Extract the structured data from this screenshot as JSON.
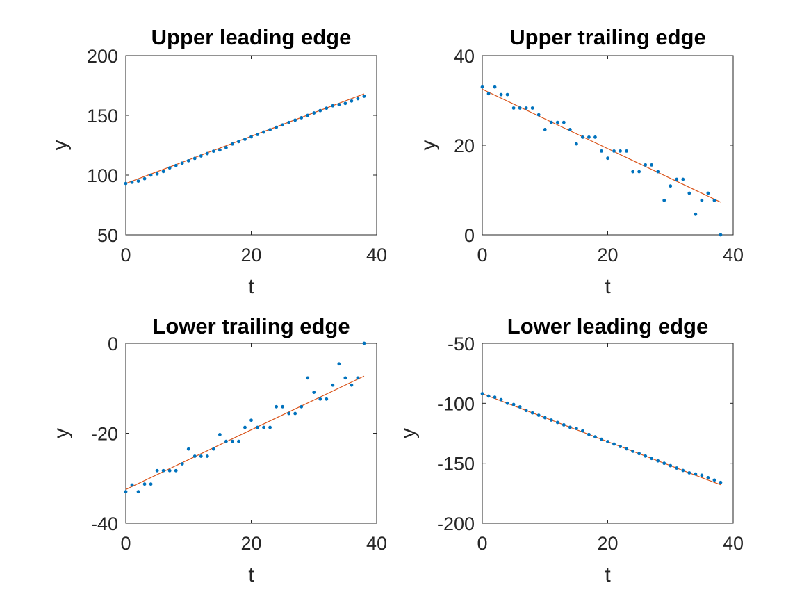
{
  "colors": {
    "points": "#0072BD",
    "fit": "#D95319",
    "axis": "#262626"
  },
  "chart_data": [
    {
      "type": "scatter",
      "title": "Upper leading edge",
      "xlabel": "t",
      "ylabel": "y",
      "xlim": [
        0,
        40
      ],
      "ylim": [
        50,
        200
      ],
      "xticks": [
        0,
        20,
        40
      ],
      "yticks": [
        50,
        100,
        150,
        200
      ],
      "xtick_labels": [
        "0",
        "20",
        "40"
      ],
      "ytick_labels": [
        "50",
        "100",
        "150",
        "200"
      ],
      "grid": false,
      "x": [
        0,
        1,
        2,
        3,
        4,
        5,
        6,
        7,
        8,
        9,
        10,
        11,
        12,
        13,
        14,
        15,
        16,
        17,
        18,
        19,
        20,
        21,
        22,
        23,
        24,
        25,
        26,
        27,
        28,
        29,
        30,
        31,
        32,
        33,
        34,
        35,
        36,
        37,
        38
      ],
      "y": [
        93,
        94,
        95,
        97,
        100,
        101,
        103,
        106,
        108,
        110,
        112,
        114,
        116,
        118,
        120,
        121,
        123,
        126,
        128,
        130,
        132,
        134,
        136,
        138,
        140,
        142,
        144,
        146,
        148,
        150,
        152,
        154,
        156,
        158,
        159,
        160,
        162,
        164,
        166
      ],
      "fit": {
        "x": [
          0,
          38
        ],
        "y": [
          93,
          168
        ]
      }
    },
    {
      "type": "scatter",
      "title": "Upper trailing edge",
      "xlabel": "t",
      "ylabel": "y",
      "xlim": [
        0,
        40
      ],
      "ylim": [
        0,
        40
      ],
      "xticks": [
        0,
        20,
        40
      ],
      "yticks": [
        0,
        20,
        40
      ],
      "xtick_labels": [
        "0",
        "20",
        "40"
      ],
      "ytick_labels": [
        "0",
        "20",
        "40"
      ],
      "grid": false,
      "x": [
        0,
        1,
        2,
        3,
        4,
        5,
        6,
        7,
        8,
        9,
        10,
        11,
        12,
        13,
        14,
        15,
        16,
        17,
        18,
        19,
        20,
        21,
        22,
        23,
        24,
        25,
        26,
        27,
        28,
        29,
        30,
        31,
        32,
        33,
        34,
        35,
        36,
        37,
        38
      ],
      "y": [
        33,
        31.5,
        33,
        31.3,
        31.3,
        28.3,
        28.3,
        28.3,
        28.3,
        26.8,
        23.5,
        25.1,
        25.1,
        25.1,
        23.5,
        20.3,
        21.8,
        21.8,
        21.8,
        18.7,
        17.1,
        18.7,
        18.7,
        18.7,
        14.1,
        14.1,
        15.6,
        15.6,
        14.1,
        7.7,
        10.9,
        12.4,
        12.4,
        9.3,
        4.6,
        7.7,
        9.3,
        7.7,
        0
      ],
      "fit": {
        "x": [
          0,
          38
        ],
        "y": [
          32.5,
          7.3
        ]
      }
    },
    {
      "type": "scatter",
      "title": "Lower trailing edge",
      "xlabel": "t",
      "ylabel": "y",
      "xlim": [
        0,
        40
      ],
      "ylim": [
        -40,
        0
      ],
      "xticks": [
        0,
        20,
        40
      ],
      "yticks": [
        -40,
        -20,
        0
      ],
      "xtick_labels": [
        "0",
        "20",
        "40"
      ],
      "ytick_labels": [
        "-40",
        "-20",
        "0"
      ],
      "grid": false,
      "x": [
        0,
        1,
        2,
        3,
        4,
        5,
        6,
        7,
        8,
        9,
        10,
        11,
        12,
        13,
        14,
        15,
        16,
        17,
        18,
        19,
        20,
        21,
        22,
        23,
        24,
        25,
        26,
        27,
        28,
        29,
        30,
        31,
        32,
        33,
        34,
        35,
        36,
        37,
        38
      ],
      "y": [
        -33,
        -31.5,
        -33,
        -31.3,
        -31.3,
        -28.3,
        -28.3,
        -28.3,
        -28.3,
        -26.8,
        -23.5,
        -25.1,
        -25.1,
        -25.1,
        -23.5,
        -20.3,
        -21.8,
        -21.8,
        -21.8,
        -18.7,
        -17.1,
        -18.7,
        -18.7,
        -18.7,
        -14.1,
        -14.1,
        -15.6,
        -15.6,
        -14.1,
        -7.7,
        -10.9,
        -12.4,
        -12.4,
        -9.3,
        -4.6,
        -7.7,
        -9.3,
        -7.7,
        0
      ],
      "fit": {
        "x": [
          0,
          38
        ],
        "y": [
          -32.5,
          -7.3
        ]
      }
    },
    {
      "type": "scatter",
      "title": "Lower leading edge",
      "xlabel": "t",
      "ylabel": "y",
      "xlim": [
        0,
        40
      ],
      "ylim": [
        -200,
        -50
      ],
      "xticks": [
        0,
        20,
        40
      ],
      "yticks": [
        -200,
        -150,
        -100,
        -50
      ],
      "xtick_labels": [
        "0",
        "20",
        "40"
      ],
      "ytick_labels": [
        "-200",
        "-150",
        "-100",
        "-50"
      ],
      "grid": false,
      "x": [
        0,
        1,
        2,
        3,
        4,
        5,
        6,
        7,
        8,
        9,
        10,
        11,
        12,
        13,
        14,
        15,
        16,
        17,
        18,
        19,
        20,
        21,
        22,
        23,
        24,
        25,
        26,
        27,
        28,
        29,
        30,
        31,
        32,
        33,
        34,
        35,
        36,
        37,
        38
      ],
      "y": [
        -92,
        -94,
        -95,
        -97,
        -100,
        -101,
        -103,
        -106,
        -108,
        -110,
        -112,
        -114,
        -116,
        -118,
        -120,
        -121,
        -123,
        -126,
        -128,
        -130,
        -132,
        -134,
        -136,
        -138,
        -140,
        -142,
        -144,
        -146,
        -148,
        -150,
        -152,
        -154,
        -156,
        -158,
        -159,
        -160,
        -162,
        -164,
        -166
      ],
      "fit": {
        "x": [
          0,
          38
        ],
        "y": [
          -92,
          -168
        ]
      }
    }
  ]
}
